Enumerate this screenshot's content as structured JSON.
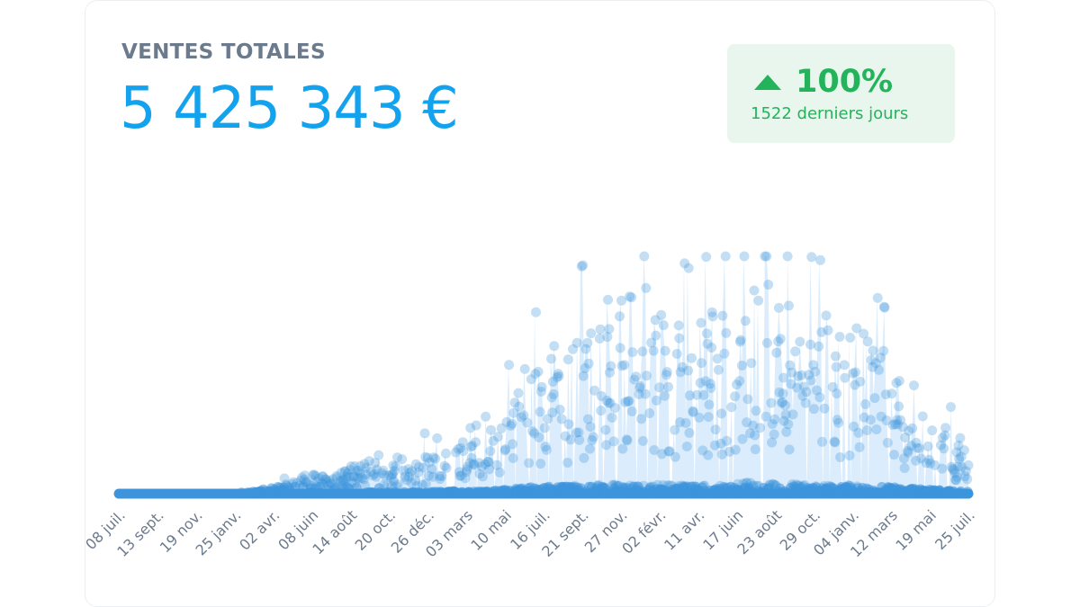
{
  "kpi": {
    "label": "VENTES TOTALES",
    "value": "5 425 343 €"
  },
  "trend": {
    "icon": "arrow-up-icon",
    "percent": "100%",
    "period": "1522 derniers jours",
    "color": "#23b35a"
  },
  "colors": {
    "value_blue": "#13a3ee",
    "series_blue": "#3d94dc",
    "area_fill": "#cfe5fb",
    "badge_bg": "#e8f6ee"
  },
  "chart_data": {
    "type": "scatter",
    "xlabel": "",
    "ylabel": "",
    "x_tick_labels": [
      "08 juil.",
      "13 sept.",
      "19 nov.",
      "25 janv.",
      "02 avr.",
      "08 juin",
      "14 août",
      "20 oct.",
      "26 déc.",
      "03 mars",
      "10 mai",
      "16 juil.",
      "21 sept.",
      "27 nov.",
      "02 févr.",
      "11 avr.",
      "17 juin",
      "23 août",
      "29 oct.",
      "04 janv.",
      "12 mars",
      "19 mai",
      "25 juil."
    ],
    "ylim": [
      0,
      100
    ],
    "grid": false,
    "legend": "none",
    "points_per_tick": 66,
    "envelope": [
      0,
      0,
      0,
      0,
      0,
      0,
      0,
      0,
      0,
      0.8,
      1,
      3,
      5,
      8,
      11,
      7,
      9,
      12,
      14,
      11,
      15,
      13,
      19,
      17,
      23,
      20,
      22,
      28,
      40,
      49,
      57,
      59,
      63,
      70,
      74,
      78,
      80,
      82,
      85,
      77,
      75,
      70,
      73,
      78,
      80,
      96,
      88,
      84,
      86,
      82,
      71,
      76,
      72,
      69,
      64,
      58,
      52,
      44,
      38,
      30,
      26,
      24
    ]
  }
}
